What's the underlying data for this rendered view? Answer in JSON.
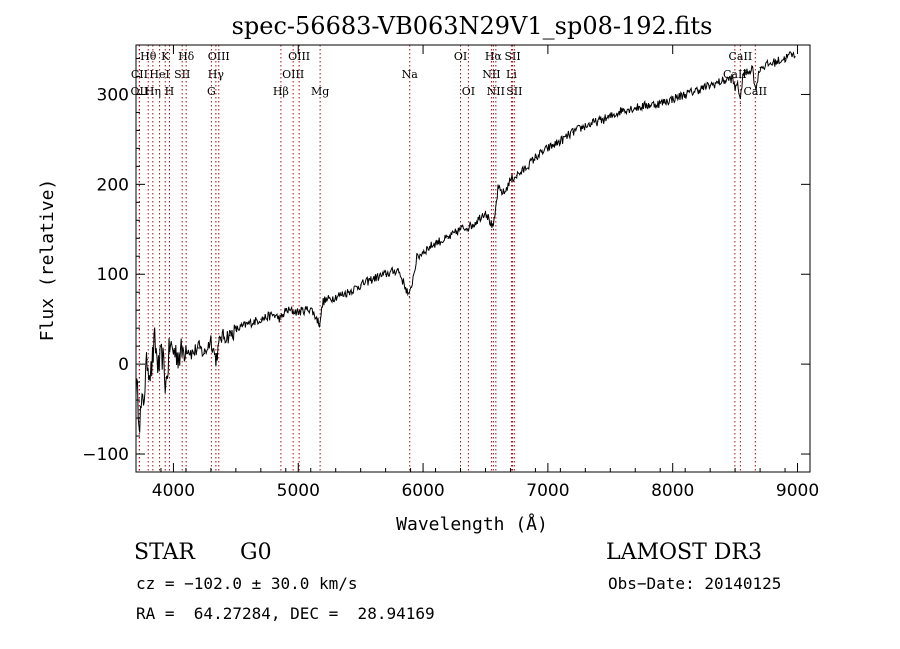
{
  "chart_data": {
    "type": "line",
    "title": "spec-56683-VB063N29V1_sp08-192.fits",
    "xlabel": "Wavelength (Å)",
    "ylabel": "Flux (relative)",
    "xlim": [
      3700,
      9100
    ],
    "ylim": [
      -120,
      355
    ],
    "xticks": [
      4000,
      5000,
      6000,
      7000,
      8000,
      9000
    ],
    "yticks": [
      -100,
      0,
      100,
      200,
      300
    ],
    "xtick_labels": [
      "4000",
      "5000",
      "6000",
      "7000",
      "8000",
      "9000"
    ],
    "ytick_labels": [
      "−100",
      "0",
      "100",
      "200",
      "300"
    ],
    "grid": false,
    "series": [
      {
        "name": "spectrum",
        "x": [
          3700,
          3730,
          3760,
          3790,
          3820,
          3850,
          3880,
          3910,
          3940,
          3970,
          4000,
          4050,
          4100,
          4150,
          4200,
          4250,
          4300,
          4340,
          4380,
          4450,
          4500,
          4600,
          4700,
          4800,
          4860,
          4900,
          5000,
          5100,
          5170,
          5200,
          5300,
          5400,
          5500,
          5600,
          5700,
          5800,
          5890,
          5950,
          6000,
          6100,
          6200,
          6300,
          6400,
          6500,
          6563,
          6600,
          6650,
          6700,
          6750,
          6800,
          6900,
          7000,
          7100,
          7200,
          7300,
          7400,
          7500,
          7600,
          7700,
          7800,
          7900,
          8000,
          8100,
          8200,
          8300,
          8400,
          8480,
          8500,
          8520,
          8542,
          8560,
          8600,
          8640,
          8662,
          8700,
          8800,
          8900,
          8950,
          8980
        ],
        "y": [
          -20,
          -60,
          -40,
          5,
          -10,
          25,
          -5,
          10,
          -25,
          20,
          15,
          10,
          20,
          12,
          18,
          12,
          28,
          5,
          30,
          32,
          38,
          45,
          50,
          55,
          50,
          60,
          58,
          62,
          45,
          70,
          75,
          80,
          88,
          95,
          100,
          105,
          75,
          118,
          125,
          135,
          140,
          150,
          155,
          170,
          150,
          195,
          190,
          205,
          210,
          215,
          230,
          240,
          248,
          258,
          265,
          270,
          275,
          283,
          285,
          288,
          290,
          295,
          300,
          305,
          310,
          315,
          318,
          305,
          315,
          290,
          322,
          325,
          330,
          305,
          330,
          335,
          340,
          345,
          342
        ]
      }
    ],
    "spectral_lines": [
      {
        "label": "Hθ",
        "wave": 3798,
        "row": 0
      },
      {
        "label": "K",
        "wave": 3934,
        "row": 0
      },
      {
        "label": "Hδ",
        "wave": 4102,
        "row": 0
      },
      {
        "label": "OIII",
        "wave": 4363,
        "row": 0
      },
      {
        "label": "OIII",
        "wave": 5007,
        "row": 0
      },
      {
        "label": "OI",
        "wave": 6300,
        "row": 0
      },
      {
        "label": "Hα",
        "wave": 6563,
        "row": 0
      },
      {
        "label": "SII",
        "wave": 6717,
        "row": 0
      },
      {
        "label": "CaII",
        "wave": 8542,
        "row": 0
      },
      {
        "label": "CII",
        "wave": 3727,
        "row": 1
      },
      {
        "label": "HeI",
        "wave": 3889,
        "row": 1
      },
      {
        "label": "SII",
        "wave": 4070,
        "row": 1
      },
      {
        "label": "Hγ",
        "wave": 4340,
        "row": 1
      },
      {
        "label": "OIII",
        "wave": 4959,
        "row": 1
      },
      {
        "label": "Na",
        "wave": 5893,
        "row": 1
      },
      {
        "label": "NII",
        "wave": 6548,
        "row": 1
      },
      {
        "label": "Li",
        "wave": 6708,
        "row": 1
      },
      {
        "label": "CaII",
        "wave": 8498,
        "row": 1
      },
      {
        "label": "OII",
        "wave": 3727,
        "row": 2
      },
      {
        "label": "Hη",
        "wave": 3835,
        "row": 2
      },
      {
        "label": "H",
        "wave": 3968,
        "row": 2
      },
      {
        "label": "G",
        "wave": 4304,
        "row": 2
      },
      {
        "label": "Hβ",
        "wave": 4861,
        "row": 2
      },
      {
        "label": "Mg",
        "wave": 5175,
        "row": 2
      },
      {
        "label": "OI",
        "wave": 6363,
        "row": 2
      },
      {
        "label": "NII",
        "wave": 6583,
        "row": 2
      },
      {
        "label": "SII",
        "wave": 6731,
        "row": 2
      },
      {
        "label": "CaII",
        "wave": 8662,
        "row": 2
      }
    ]
  },
  "info": {
    "object_class": "STAR",
    "subclass": "G0",
    "survey": "LAMOST DR3",
    "velocity": "cz = −102.0 ± 30.0 km/s",
    "obs_date": "Obs−Date: 20140125",
    "coords": "RA =  64.27284, DEC =  28.94169"
  },
  "colors": {
    "line_marker": "#a01010",
    "spectrum": "#000000"
  }
}
